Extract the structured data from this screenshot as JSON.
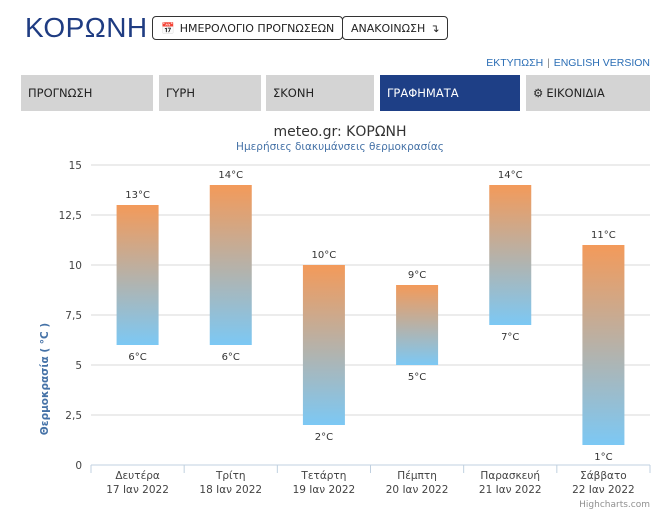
{
  "header": {
    "title": "ΚΟΡΩΝΗ",
    "calendar_button": "ΗΜΕΡΟΛΟΓΙΟ ΠΡΟΓΝΩΣΕΩΝ",
    "announcements_button": "ΑΝΑΚΟΙΝΩΣΗ",
    "print_link": "ΕΚΤΥΠΩΣΗ",
    "english_link": "ENGLISH VERSION"
  },
  "tabs": [
    {
      "label": "ΠΡΟΓΝΩΣΗ",
      "active": false
    },
    {
      "label": "ΓΥΡΗ",
      "active": false
    },
    {
      "label": "ΣΚΟΝΗ",
      "active": false
    },
    {
      "label": "ΓΡΑΦΗΜΑΤΑ",
      "active": true
    },
    {
      "label": "ΕΙΚΟΝΙΔΙΑ",
      "active": false
    }
  ],
  "icons": {
    "calendar": "calendar-icon",
    "arrow": "arrow-down-icon",
    "gear": "gear-icon"
  },
  "colors": {
    "brand": "#1f3c82",
    "active_tab": "#1e3f86",
    "bar_top": "#f39a5a",
    "bar_bottom": "#7cc8f4",
    "axis_title": "#4572a7"
  },
  "chart_data": {
    "type": "columnrange",
    "title": "meteo.gr: ΚΟΡΩΝΗ",
    "subtitle": "Ημερήσιες διακυμάνσεις θερμοκρασίας",
    "ylabel": "Θερμοκρασία ( °C )",
    "ylim": [
      0,
      15
    ],
    "yticks": [
      "0",
      "2,5",
      "5",
      "7,5",
      "10",
      "12,5",
      "15"
    ],
    "unit": "°C",
    "categories": [
      {
        "day": "Δευτέρα",
        "date": "17 Ιαν 2022"
      },
      {
        "day": "Τρίτη",
        "date": "18 Ιαν 2022"
      },
      {
        "day": "Τετάρτη",
        "date": "19 Ιαν 2022"
      },
      {
        "day": "Πέμπτη",
        "date": "20 Ιαν 2022"
      },
      {
        "day": "Παρασκευή",
        "date": "21 Ιαν 2022"
      },
      {
        "day": "Σάββατο",
        "date": "22 Ιαν 2022"
      }
    ],
    "low": [
      6,
      6,
      2,
      5,
      7,
      1
    ],
    "high": [
      13,
      14,
      10,
      9,
      14,
      11
    ],
    "credit": "Highcharts.com",
    "grid": true
  }
}
